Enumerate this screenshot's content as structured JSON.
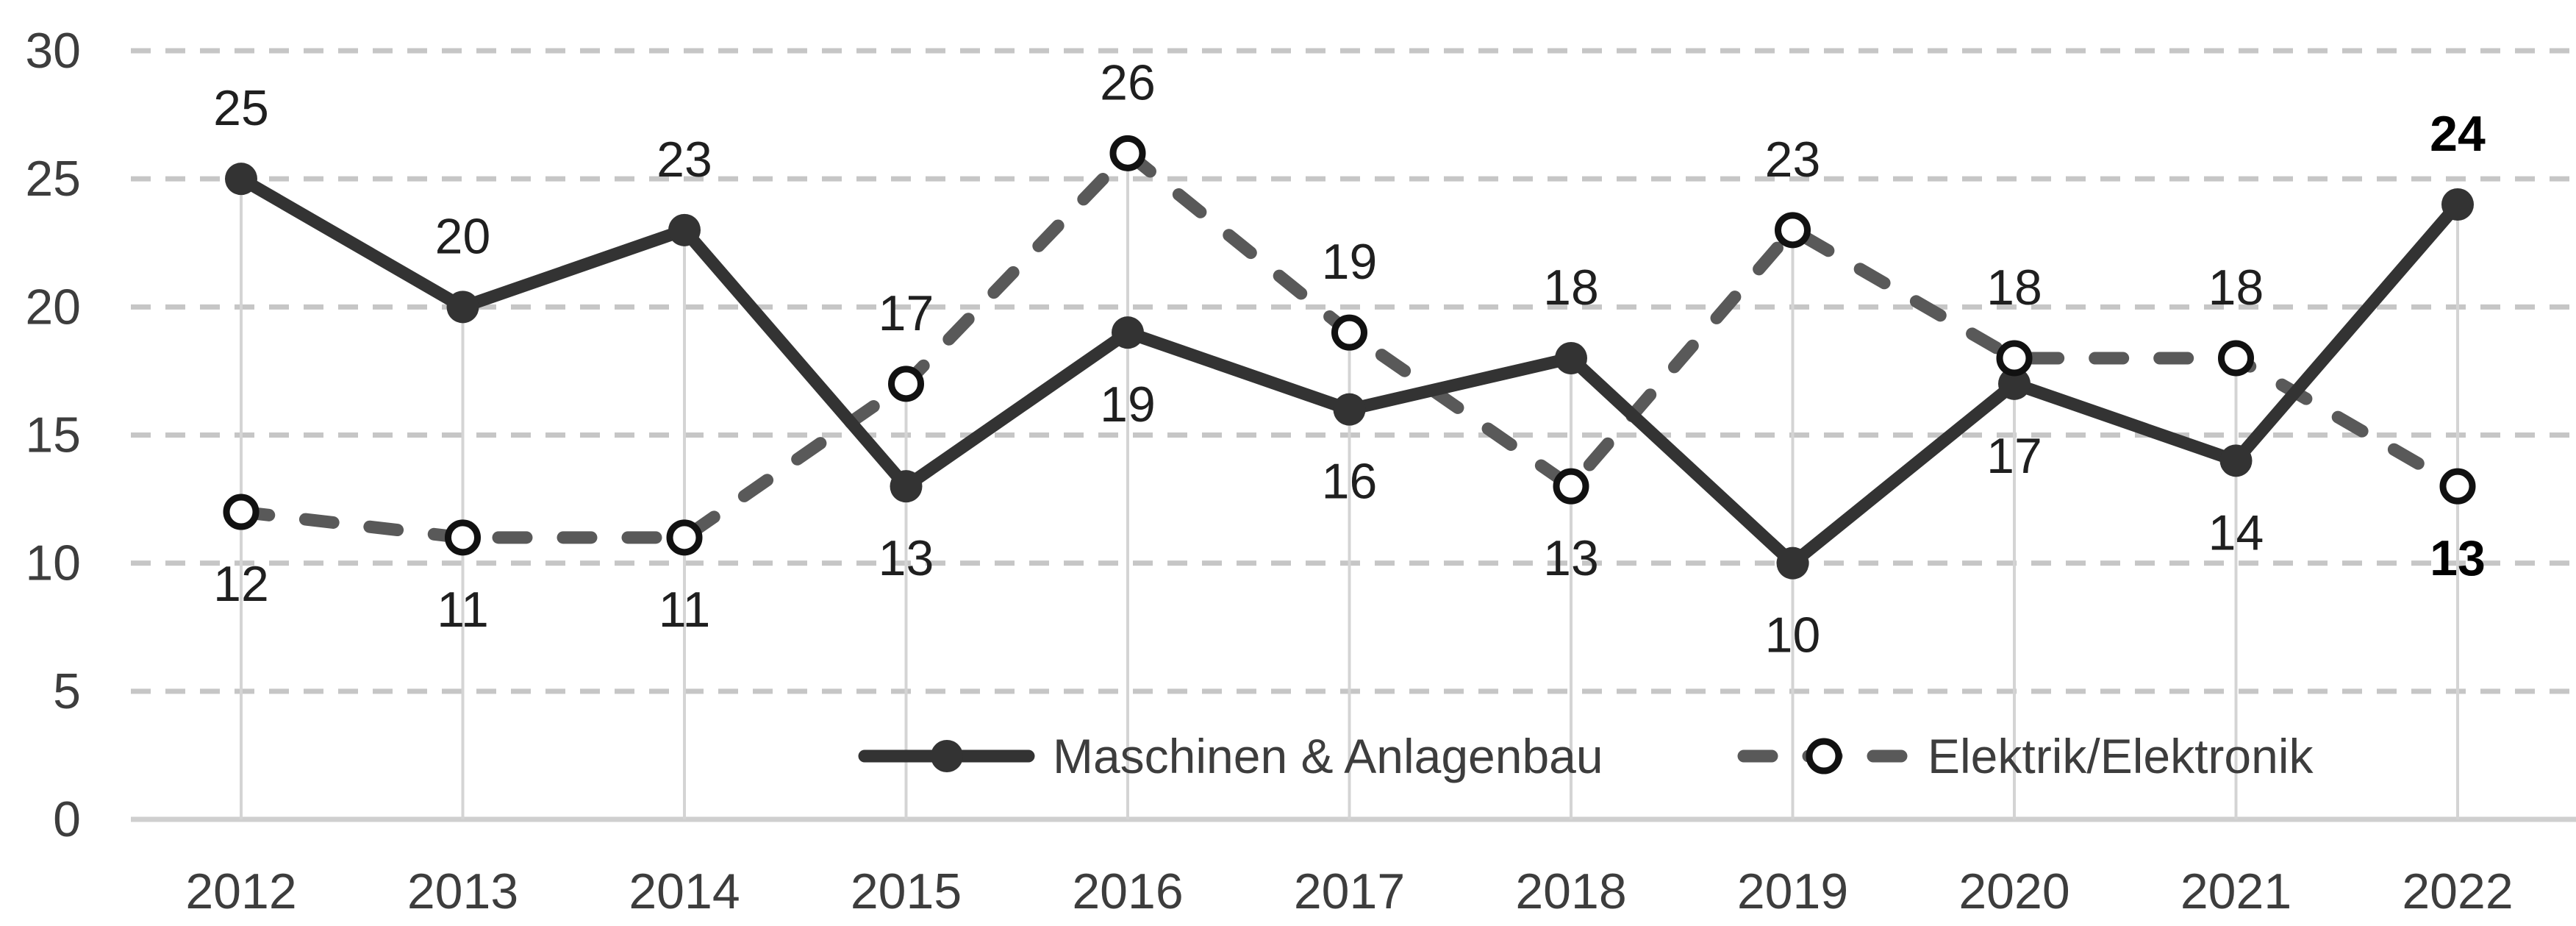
{
  "chart_data": {
    "type": "line",
    "title": "",
    "xlabel": "",
    "ylabel": "",
    "categories": [
      "2012",
      "2013",
      "2014",
      "2015",
      "2016",
      "2017",
      "2018",
      "2019",
      "2020",
      "2021",
      "2022"
    ],
    "series": [
      {
        "name": "Maschinen & Anlagenbau",
        "values": [
          25,
          20,
          23,
          13,
          19,
          16,
          18,
          10,
          17,
          14,
          24
        ],
        "line_style": "solid",
        "marker": "filled-circle",
        "color": "#333333",
        "label_side": [
          "above",
          "above",
          "above",
          "below",
          "below",
          "below",
          "above",
          "below",
          "below",
          "below",
          "above"
        ]
      },
      {
        "name": "Elektrik/Elektronik",
        "values": [
          12,
          11,
          11,
          17,
          26,
          19,
          13,
          23,
          18,
          18,
          13
        ],
        "line_style": "dashed",
        "marker": "open-circle",
        "color": "#595959",
        "label_side": [
          "below",
          "below",
          "below",
          "above",
          "above",
          "above",
          "below",
          "above",
          "above",
          "above",
          "below"
        ]
      }
    ],
    "ylim": [
      0,
      30
    ],
    "yticks": [
      0,
      5,
      10,
      15,
      20,
      25,
      30
    ],
    "grid": "horizontal-dashed-with-category-drop-lines",
    "legend_position": "bottom-center-inside",
    "bold_label_category": "2022",
    "colors": {
      "background": "#ffffff",
      "data_label": "#1f1f1f",
      "bold_data_label": "#000000",
      "axis_label": "#3d3d3d",
      "gridline": "#c6c6c6",
      "drop_line": "#d4d4d4",
      "baseline": "#cfcfcf",
      "marker_ring": "#111111",
      "marker_fill_open": "#ffffff"
    }
  }
}
